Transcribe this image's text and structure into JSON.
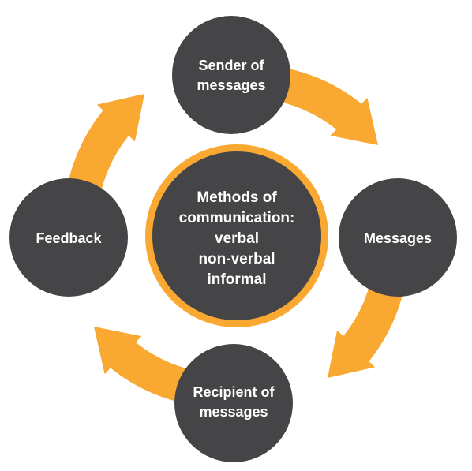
{
  "colors": {
    "arrow": "#F9A832",
    "node": "#454548",
    "center_ring": "#F9A832",
    "text": "#ffffff",
    "background": "#ffffff"
  },
  "nodes": {
    "top": {
      "line1": "Sender of",
      "line2": "messages"
    },
    "right": {
      "line1": "Messages"
    },
    "bottom": {
      "line1": "Recipient of",
      "line2": "messages"
    },
    "left": {
      "line1": "Feedback"
    }
  },
  "center": {
    "line1": "Methods of",
    "line2": "communication:",
    "line3": "verbal",
    "line4": "non-verbal",
    "line5": "informal"
  }
}
